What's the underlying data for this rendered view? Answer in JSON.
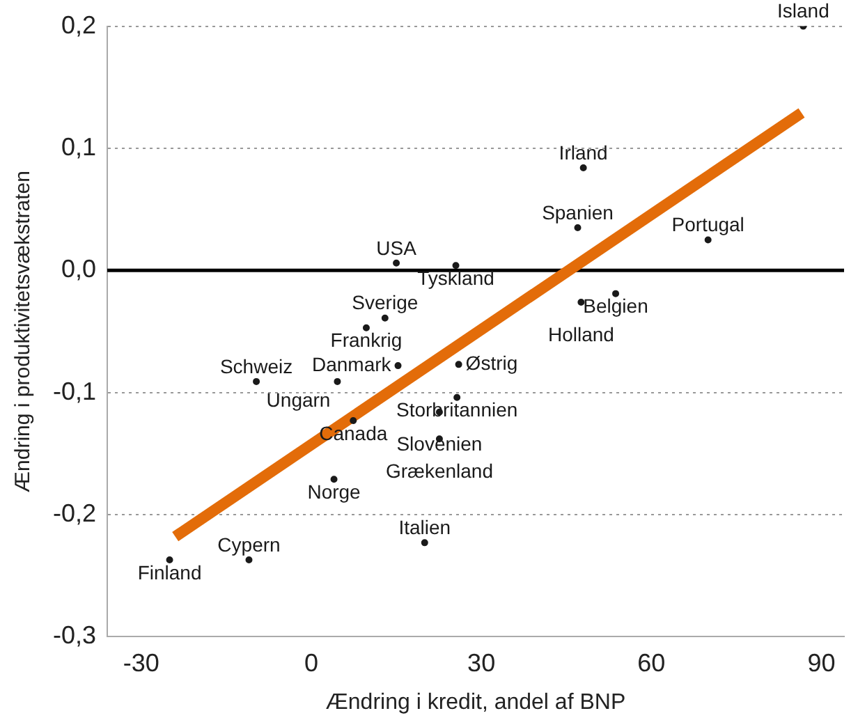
{
  "chart_data": {
    "type": "scatter",
    "xlabel": "Ændring i kredit, andel af BNP",
    "ylabel": "Ændring i produktivitetsvækstraten",
    "xlim": [
      -36,
      94
    ],
    "xticks": [
      -30,
      0,
      30,
      60,
      90
    ],
    "ylim": [
      -0.3,
      0.2
    ],
    "yticks": [
      {
        "value": -0.3,
        "label": "-0,3"
      },
      {
        "value": -0.2,
        "label": "-0,2"
      },
      {
        "value": -0.1,
        "label": "-0,1"
      },
      {
        "value": 0,
        "label": "0,0"
      },
      {
        "value": 0.1,
        "label": "0,1"
      },
      {
        "value": 0.2,
        "label": "0,2"
      }
    ],
    "grid": "y",
    "legend": false,
    "ref_lines": [
      {
        "axis": "y",
        "value": 0,
        "color": "#000000"
      }
    ],
    "series": [
      {
        "type": "scatter",
        "color": "#1a1a1a",
        "marker": "circle",
        "x": [
          86.8,
          48,
          47,
          70,
          15,
          25.5,
          53.7,
          47.6,
          13,
          9.7,
          15.3,
          26,
          -9.7,
          4.6,
          25.7,
          22.6,
          7.4,
          22.6,
          4,
          20,
          -25,
          -11
        ],
        "values": [
          0.2,
          0.084,
          0.035,
          0.025,
          0.006,
          0.004,
          -0.019,
          -0.026,
          -0.039,
          -0.047,
          -0.078,
          -0.077,
          -0.091,
          -0.091,
          -0.104,
          -0.116,
          -0.123,
          -0.138,
          -0.171,
          -0.223,
          -0.237,
          -0.237
        ],
        "value_labels": [
          "Island",
          "Irland",
          "Spanien",
          "Portugal",
          "USA",
          "Tyskland",
          "Belgien",
          "Holland",
          "Sverige",
          "Frankrig",
          "Danmark",
          "Østrig",
          "Schweiz",
          "Ungarn",
          "Storbritannien",
          "Slovenien",
          "Canada",
          "Grækenland",
          "Norge",
          "Italien",
          "Finland",
          "Cypern"
        ]
      },
      {
        "type": "line",
        "color": "#e36c09",
        "marker": "none",
        "x": [
          -24,
          86.5
        ],
        "values": [
          -0.218,
          0.129
        ]
      }
    ]
  }
}
